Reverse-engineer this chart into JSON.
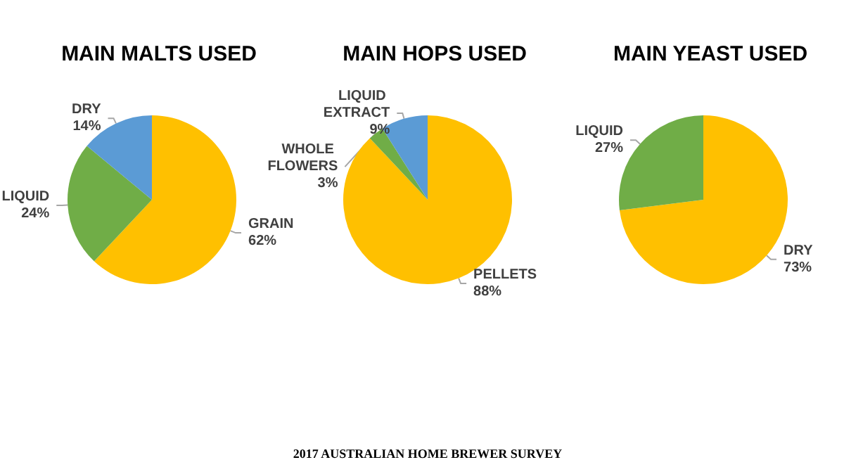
{
  "chart_data": [
    {
      "type": "pie",
      "title": "MAIN MALTS USED",
      "categories": [
        "GRAIN",
        "LIQUID",
        "DRY"
      ],
      "values": [
        62,
        24,
        14
      ],
      "value_labels": [
        "62%",
        "24%",
        "14%"
      ],
      "colors": [
        "#ffc000",
        "#70ad47",
        "#5b9bd5"
      ]
    },
    {
      "type": "pie",
      "title": "MAIN HOPS USED",
      "categories": [
        "PELLETS",
        "WHOLE FLOWERS",
        "LIQUID EXTRACT"
      ],
      "values": [
        88,
        3,
        9
      ],
      "value_labels": [
        "88%",
        "3%",
        "9%"
      ],
      "colors": [
        "#ffc000",
        "#70ad47",
        "#5b9bd5"
      ],
      "annotations": [
        "2017 AUSTRALIAN HOME BREWER SURVEY"
      ]
    },
    {
      "type": "pie",
      "title": "MAIN YEAST USED",
      "categories": [
        "DRY",
        "LIQUID"
      ],
      "values": [
        73,
        27
      ],
      "value_labels": [
        "73%",
        "27%"
      ],
      "colors": [
        "#ffc000",
        "#70ad47"
      ]
    }
  ]
}
